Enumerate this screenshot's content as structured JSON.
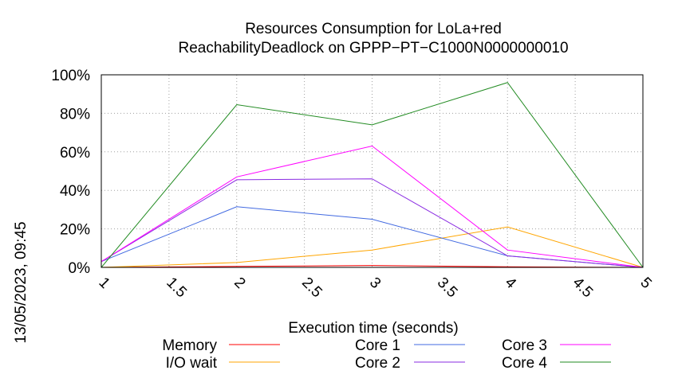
{
  "chart_data": {
    "type": "line",
    "title": "Resources Consumption for LoLa+red",
    "subtitle": "ReachabilityDeadlock on GPPP−PT−C1000N0000000010",
    "xlabel": "Execution time (seconds)",
    "ylabel": "",
    "timestamp": "13/05/2023, 09:45",
    "x_ticks": [
      "1",
      "1.5",
      "2",
      "2.5",
      "3",
      "3.5",
      "4",
      "4.5",
      "5"
    ],
    "y_ticks": [
      "0%",
      "20%",
      "40%",
      "60%",
      "80%",
      "100%"
    ],
    "xlim": [
      1,
      5
    ],
    "ylim": [
      0,
      100
    ],
    "grid": true,
    "legend_position": "bottom",
    "x": [
      1,
      2,
      3,
      4,
      5
    ],
    "series": [
      {
        "name": "Memory",
        "color": "#ff0000",
        "values": [
          0,
          0.5,
          1,
          0.3,
          0
        ]
      },
      {
        "name": "I/O wait",
        "color": "#ffa500",
        "values": [
          0,
          2.5,
          9,
          21,
          0
        ]
      },
      {
        "name": "Core 1",
        "color": "#4169e1",
        "values": [
          3,
          31.5,
          25,
          6,
          0
        ]
      },
      {
        "name": "Core 2",
        "color": "#8a2be2",
        "values": [
          3,
          45.5,
          46,
          6,
          0
        ]
      },
      {
        "name": "Core 3",
        "color": "#ff00ff",
        "values": [
          3,
          47,
          63,
          9,
          0
        ]
      },
      {
        "name": "Core 4",
        "color": "#228b22",
        "values": [
          0,
          84.5,
          74,
          96,
          0
        ]
      }
    ]
  }
}
